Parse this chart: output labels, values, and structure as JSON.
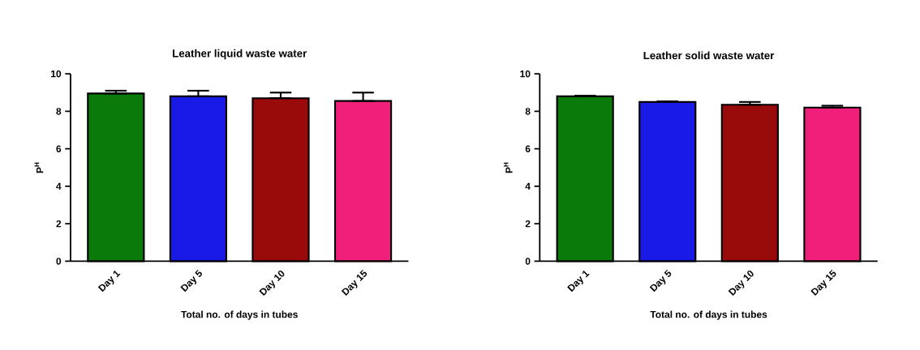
{
  "chart_data": [
    {
      "type": "bar",
      "title": "Leather liquid waste water",
      "xlabel": "Total no. of days in tubes",
      "ylabel": "P$^{H}$",
      "categories": [
        "Day 1",
        "Day 5",
        "Day 10",
        "Day 15"
      ],
      "values": [
        8.95,
        8.8,
        8.7,
        8.55
      ],
      "colors": [
        "#0a7a0a",
        "#1a1ae6",
        "#990a0a",
        "#f0207a"
      ],
      "errors": [
        [
          8.95,
          9.1
        ],
        [
          8.8,
          9.1
        ],
        [
          8.7,
          9.0
        ],
        [
          8.55,
          9.0
        ]
      ],
      "ylim": [
        0,
        10
      ],
      "yticks": [
        0,
        2,
        4,
        6,
        8,
        10
      ]
    },
    {
      "type": "bar",
      "title": "Leather solid waste water",
      "xlabel": "Total no. of days in tubes",
      "ylabel": "P$^{H}$",
      "categories": [
        "Day 1",
        "Day 5",
        "Day 10",
        "Day 15"
      ],
      "values": [
        8.8,
        8.5,
        8.35,
        8.2
      ],
      "colors": [
        "#0a7a0a",
        "#1a1ae6",
        "#990a0a",
        "#f0207a"
      ],
      "errors": [
        [
          8.8,
          8.83
        ],
        [
          8.5,
          8.53
        ],
        [
          8.35,
          8.5
        ],
        [
          8.2,
          8.3
        ]
      ],
      "ylim": [
        0,
        10
      ],
      "yticks": [
        0,
        2,
        4,
        6,
        8,
        10
      ]
    }
  ]
}
